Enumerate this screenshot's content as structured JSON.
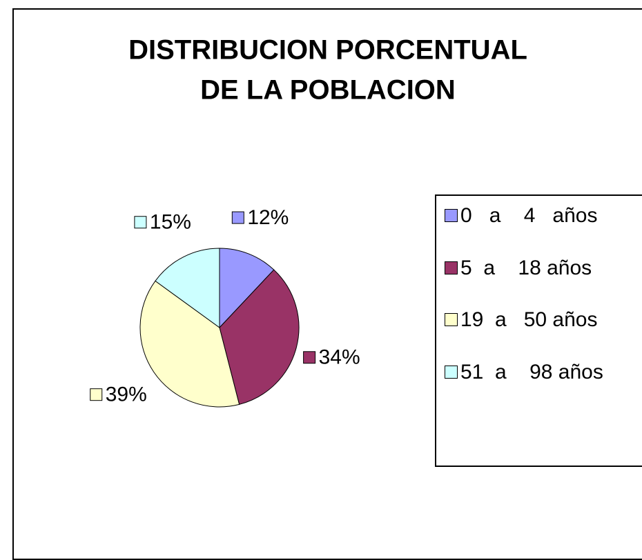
{
  "chart_data": {
    "type": "pie",
    "title": [
      "DISTRIBUCION PORCENTUAL",
      "DE LA POBLACION"
    ],
    "categories": [
      "0   a    4   años",
      "5  a    18 años",
      "19  a   50 años",
      "51  a    98 años"
    ],
    "values": [
      12,
      34,
      39,
      15
    ],
    "value_labels": [
      "12%",
      "34%",
      "39%",
      "15%"
    ],
    "colors": [
      "#9999ff",
      "#993366",
      "#ffffcc",
      "#ccffff"
    ],
    "legend": "right"
  }
}
